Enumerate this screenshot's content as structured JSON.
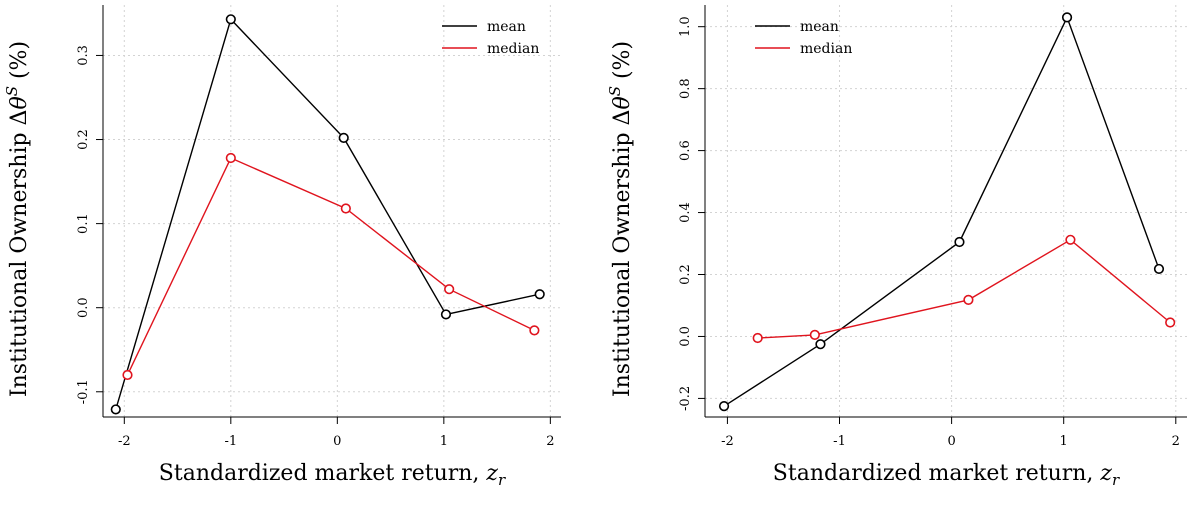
{
  "chart_data": [
    {
      "type": "line",
      "xlabel": "Standardized market return, z_r",
      "ylabel": "Institutional Ownership Δθ^S (%)",
      "xlim": [
        -2.2,
        2.1
      ],
      "ylim": [
        -0.13,
        0.36
      ],
      "x_ticks": [
        "-2",
        "-1",
        "0",
        "1",
        "2"
      ],
      "y_ticks": [
        "-0.1",
        "0.0",
        "0.1",
        "0.2",
        "0.3"
      ],
      "grid": true,
      "legend_position": "top-right",
      "series": [
        {
          "name": "mean",
          "color": "#000000",
          "x": [
            -2.08,
            -1.0,
            0.06,
            1.02,
            1.9
          ],
          "y": [
            -0.121,
            0.343,
            0.202,
            -0.008,
            0.016
          ]
        },
        {
          "name": "median",
          "color": "#e0141e",
          "x": [
            -1.97,
            -1.0,
            0.08,
            1.05,
            1.85
          ],
          "y": [
            -0.08,
            0.178,
            0.118,
            0.022,
            -0.027
          ]
        }
      ]
    },
    {
      "type": "line",
      "xlabel": "Standardized market return, z_r",
      "ylabel": "Institutional Ownership Δθ^S (%)",
      "xlim": [
        -2.2,
        2.1
      ],
      "ylim": [
        -0.26,
        1.07
      ],
      "x_ticks": [
        "-2",
        "-1",
        "0",
        "1",
        "2"
      ],
      "y_ticks": [
        "-0.2",
        "0.0",
        "0.2",
        "0.4",
        "0.6",
        "0.8",
        "1.0"
      ],
      "grid": true,
      "legend_position": "top-left",
      "series": [
        {
          "name": "mean",
          "color": "#000000",
          "x": [
            -2.03,
            -1.17,
            0.07,
            1.03,
            1.85
          ],
          "y": [
            -0.225,
            -0.025,
            0.305,
            1.03,
            0.218
          ]
        },
        {
          "name": "median",
          "color": "#e0141e",
          "x": [
            -1.73,
            -1.22,
            0.15,
            1.06,
            1.95
          ],
          "y": [
            -0.005,
            0.005,
            0.118,
            0.312,
            0.045
          ]
        }
      ]
    }
  ]
}
